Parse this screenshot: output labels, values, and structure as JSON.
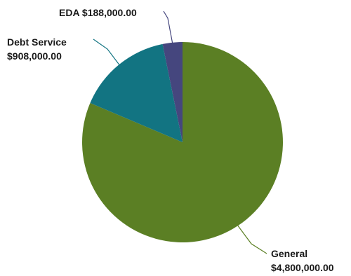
{
  "chart_data": {
    "type": "pie",
    "title": "",
    "categories": [
      "General",
      "Debt Service",
      "EDA"
    ],
    "values": [
      4800000.0,
      908000.0,
      188000.0
    ],
    "value_labels": [
      "$4,800,000.00",
      "$908,000.00",
      "$188,000.00"
    ],
    "label_lines": [
      [
        "General",
        "$4,800,000.00"
      ],
      [
        "Debt Service",
        "$908,000.00"
      ],
      [
        "EDA $188,000.00"
      ]
    ],
    "colors": [
      "#5b7f24",
      "#127482",
      "#45467e"
    ],
    "leader_line_colors": [
      "#5b7f24",
      "#127482",
      "#45467e"
    ],
    "start_angle_deg": 0,
    "direction": "clockwise",
    "legend": "none"
  }
}
